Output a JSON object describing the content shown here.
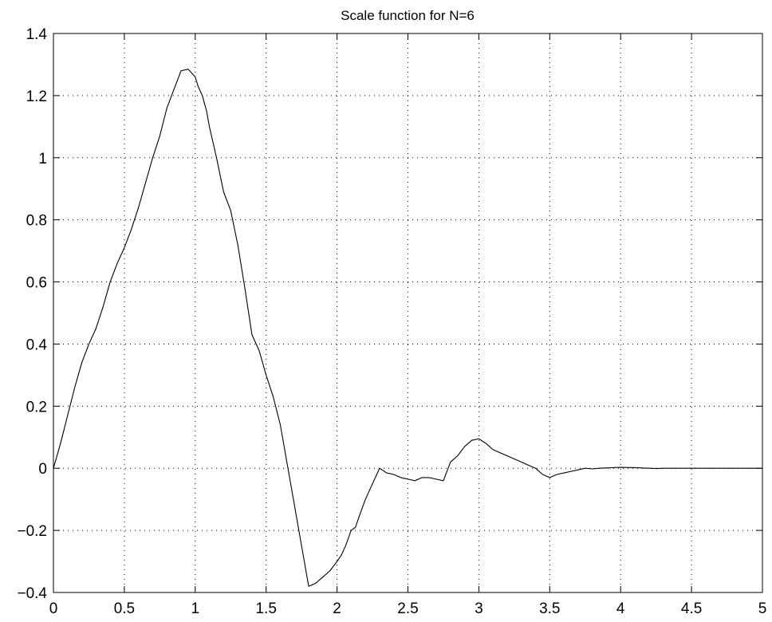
{
  "chart_data": {
    "type": "line",
    "title": "Scale function for N=6",
    "xlabel": "",
    "ylabel": "",
    "xlim": [
      0,
      5
    ],
    "ylim": [
      -0.4,
      1.4
    ],
    "grid": true,
    "x_ticks": [
      0,
      0.5,
      1,
      1.5,
      2,
      2.5,
      3,
      3.5,
      4,
      4.5,
      5
    ],
    "x_tick_labels": [
      "0",
      "0.5",
      "1",
      "1.5",
      "2",
      "2.5",
      "3",
      "3.5",
      "4",
      "4.5",
      "5"
    ],
    "y_ticks": [
      -0.4,
      -0.2,
      0,
      0.2,
      0.4,
      0.6,
      0.8,
      1,
      1.2,
      1.4
    ],
    "y_tick_labels": [
      "−0.4",
      "−0.2",
      "0",
      "0.2",
      "0.4",
      "0.6",
      "0.8",
      "1",
      "1.2",
      "1.4"
    ],
    "series": [
      {
        "color": "#000000",
        "x": [
          0,
          0.05,
          0.1,
          0.15,
          0.2,
          0.25,
          0.3,
          0.35,
          0.4,
          0.45,
          0.5,
          0.55,
          0.6,
          0.65,
          0.7,
          0.75,
          0.8,
          0.85,
          0.9,
          0.95,
          1.0,
          1.02,
          1.05,
          1.08,
          1.1,
          1.15,
          1.2,
          1.25,
          1.3,
          1.35,
          1.4,
          1.45,
          1.5,
          1.55,
          1.6,
          1.65,
          1.7,
          1.75,
          1.8,
          1.85,
          1.9,
          1.95,
          2.0,
          2.03,
          2.06,
          2.1,
          2.13,
          2.16,
          2.2,
          2.25,
          2.3,
          2.35,
          2.4,
          2.45,
          2.5,
          2.55,
          2.6,
          2.65,
          2.7,
          2.75,
          2.8,
          2.85,
          2.9,
          2.95,
          3.0,
          3.05,
          3.1,
          3.15,
          3.2,
          3.25,
          3.3,
          3.35,
          3.4,
          3.45,
          3.5,
          3.55,
          3.6,
          3.65,
          3.7,
          3.75,
          3.8,
          3.85,
          3.9,
          3.95,
          4.0,
          4.1,
          4.2,
          4.25,
          4.3,
          4.4,
          4.5,
          4.6,
          4.7,
          4.8,
          4.9,
          5.0
        ],
        "y": [
          0,
          0.08,
          0.17,
          0.26,
          0.34,
          0.4,
          0.45,
          0.52,
          0.6,
          0.66,
          0.71,
          0.77,
          0.84,
          0.92,
          1.0,
          1.07,
          1.16,
          1.22,
          1.28,
          1.285,
          1.26,
          1.23,
          1.2,
          1.15,
          1.1,
          1.0,
          0.89,
          0.83,
          0.72,
          0.58,
          0.43,
          0.38,
          0.3,
          0.23,
          0.14,
          0.01,
          -0.12,
          -0.25,
          -0.38,
          -0.37,
          -0.35,
          -0.33,
          -0.3,
          -0.28,
          -0.25,
          -0.2,
          -0.19,
          -0.15,
          -0.1,
          -0.05,
          0.0,
          -0.015,
          -0.02,
          -0.03,
          -0.035,
          -0.04,
          -0.03,
          -0.03,
          -0.035,
          -0.04,
          0.02,
          0.04,
          0.07,
          0.09,
          0.095,
          0.08,
          0.06,
          0.05,
          0.04,
          0.03,
          0.02,
          0.01,
          0.0,
          -0.02,
          -0.03,
          -0.02,
          -0.015,
          -0.01,
          -0.005,
          0.0,
          -0.002,
          0.0,
          0.001,
          0.002,
          0.003,
          0.002,
          0.0,
          -0.001,
          0.0,
          0.0,
          0.0,
          0.0,
          0.0,
          0.0,
          0.0,
          0.0
        ]
      }
    ]
  }
}
